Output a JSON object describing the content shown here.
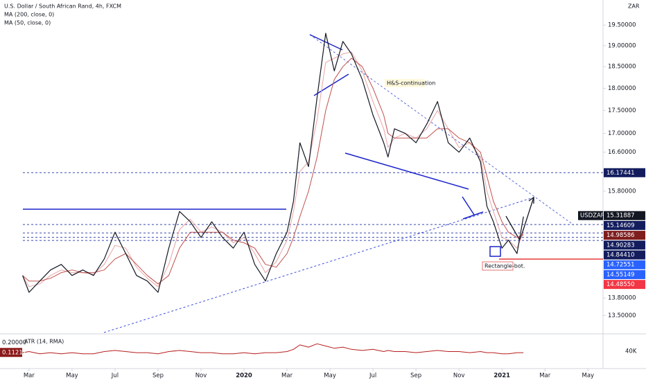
{
  "chart_data": {
    "type": "line",
    "title": "U.S. Dollar / South African Rand, 4h, FXCM",
    "currency": "ZAR",
    "log_scale": true,
    "x": [
      1.7,
      2,
      2.5,
      3,
      3.5,
      4,
      4.5,
      5,
      5.5,
      6,
      6.5,
      7,
      7.5,
      8,
      8.5,
      9,
      9.5,
      10,
      10.5,
      11,
      11.5,
      12,
      12.5,
      13,
      13.5,
      14,
      14.3,
      14.6,
      15,
      15.4,
      15.8,
      16.2,
      16.6,
      17,
      17.5,
      18,
      18.5,
      18.7,
      19,
      19.5,
      20,
      20.5,
      21,
      21.5,
      22,
      22.5,
      23,
      23.3,
      23.6,
      24,
      24.3,
      24.7,
      25
    ],
    "xlim": [
      0.65,
      28.7
    ],
    "xticks": [
      {
        "value": 2,
        "label": "Mar"
      },
      {
        "value": 4,
        "label": "May"
      },
      {
        "value": 6,
        "label": "Jul"
      },
      {
        "value": 8,
        "label": "Sep"
      },
      {
        "value": 10,
        "label": "Nov"
      },
      {
        "value": 12,
        "label": "2020"
      },
      {
        "value": 14,
        "label": "Mar"
      },
      {
        "value": 16,
        "label": "May"
      },
      {
        "value": 18,
        "label": "Jul"
      },
      {
        "value": 20,
        "label": "Sep"
      },
      {
        "value": 22,
        "label": "Nov"
      },
      {
        "value": 24,
        "label": "2021"
      },
      {
        "value": 26,
        "label": "Mar"
      },
      {
        "value": 28,
        "label": "May"
      }
    ],
    "ylim": [
      13.21,
      20.13
    ],
    "yticks": [
      {
        "value": 19.5,
        "label": "19.50000"
      },
      {
        "value": 19,
        "label": "19.00000"
      },
      {
        "value": 18.5,
        "label": "18.50000"
      },
      {
        "value": 18,
        "label": "18.00000"
      },
      {
        "value": 17.5,
        "label": "17.50000"
      },
      {
        "value": 17,
        "label": "17.00000"
      },
      {
        "value": 16.6,
        "label": "16.60000"
      },
      {
        "value": 15.8,
        "label": "15.80000"
      },
      {
        "value": 13.8,
        "label": "13.80000"
      },
      {
        "value": 13.5,
        "label": "13.50000"
      }
    ],
    "series": [
      {
        "name": "USDZAR",
        "color": "#131722",
        "last": 15.31887,
        "values": [
          14.2,
          13.9,
          14.1,
          14.3,
          14.4,
          14.2,
          14.3,
          14.2,
          14.5,
          15.0,
          14.6,
          14.2,
          14.1,
          13.9,
          14.7,
          15.4,
          15.2,
          14.9,
          15.2,
          14.9,
          14.7,
          15.0,
          14.4,
          14.1,
          14.6,
          15.0,
          15.6,
          16.8,
          16.3,
          17.8,
          19.3,
          18.4,
          19.1,
          18.8,
          18.2,
          17.4,
          16.8,
          16.5,
          17.1,
          17.0,
          16.8,
          17.2,
          17.7,
          16.8,
          16.6,
          16.9,
          16.4,
          15.5,
          15.2,
          14.7,
          14.85,
          14.6,
          15.3
        ]
      },
      {
        "name": "MA (200, close, 0)",
        "color": "#c0504d",
        "values": [
          14.2,
          14.1,
          14.1,
          14.15,
          14.25,
          14.3,
          14.25,
          14.25,
          14.3,
          14.5,
          14.6,
          14.4,
          14.2,
          14.05,
          14.2,
          14.7,
          15.0,
          15.0,
          15.0,
          15.0,
          14.85,
          14.8,
          14.7,
          14.4,
          14.35,
          14.6,
          14.9,
          15.3,
          15.8,
          16.5,
          17.5,
          18.2,
          18.5,
          18.7,
          18.5,
          18.0,
          17.4,
          17.0,
          16.9,
          16.9,
          16.9,
          16.9,
          17.1,
          17.1,
          16.9,
          16.8,
          16.6,
          16.1,
          15.6,
          15.2,
          15.0,
          14.9,
          14.95
        ]
      },
      {
        "name": "MA (50, close, 0)",
        "color": "#e9a3a3",
        "values": [
          14.2,
          14.0,
          14.05,
          14.2,
          14.3,
          14.25,
          14.25,
          14.22,
          14.4,
          14.75,
          14.7,
          14.35,
          14.15,
          14.0,
          14.4,
          15.05,
          15.25,
          15.0,
          15.1,
          15.0,
          14.8,
          14.9,
          14.6,
          14.25,
          14.45,
          14.85,
          15.4,
          16.2,
          16.4,
          17.3,
          18.6,
          18.7,
          18.8,
          18.85,
          18.4,
          17.7,
          17.1,
          16.7,
          16.9,
          17.0,
          16.9,
          17.1,
          17.5,
          17.1,
          16.7,
          16.8,
          16.5,
          15.8,
          15.4,
          14.9,
          14.85,
          14.7,
          15.0
        ]
      }
    ],
    "levels": [
      {
        "value": 16.17441,
        "color": "#131d5e",
        "dashed": true
      },
      {
        "value": 15.14609,
        "color": "#131d5e",
        "dashed": true
      },
      {
        "value": 14.98586,
        "color": "#7f1d1d",
        "dashed": true
      },
      {
        "value": 14.90283,
        "color": "#131d5e",
        "dashed": true
      },
      {
        "value": 14.8441,
        "label": "14.84410",
        "color": "#131d5e",
        "dashed": true
      },
      {
        "value": 14.72551,
        "color": "#2962ff",
        "dashed": false
      },
      {
        "value": 14.55149,
        "color": "#2962ff",
        "dashed": false
      },
      {
        "value": 14.4855,
        "label": "14.48550",
        "color": "#f23645",
        "dashed": false
      }
    ],
    "annotations": [
      "H&S-continuation",
      "Rectangle-bot."
    ],
    "atr": {
      "name": "ATR (14, RMA)",
      "color": "#b71c1c",
      "values": [
        0.11,
        0.12,
        0.1,
        0.11,
        0.1,
        0.11,
        0.1,
        0.1,
        0.12,
        0.13,
        0.12,
        0.11,
        0.11,
        0.1,
        0.12,
        0.13,
        0.12,
        0.11,
        0.11,
        0.1,
        0.1,
        0.11,
        0.1,
        0.11,
        0.11,
        0.12,
        0.14,
        0.18,
        0.16,
        0.19,
        0.17,
        0.15,
        0.16,
        0.14,
        0.13,
        0.14,
        0.12,
        0.13,
        0.12,
        0.12,
        0.11,
        0.12,
        0.13,
        0.12,
        0.12,
        0.11,
        0.12,
        0.11,
        0.11,
        0.1,
        0.1,
        0.11,
        0.11
      ],
      "ylim": [
        -0.02,
        0.26
      ],
      "yticks": [
        {
          "value": 0.2,
          "label": "0.20000"
        }
      ],
      "last": 0.11211,
      "axis_note": "40K"
    }
  }
}
